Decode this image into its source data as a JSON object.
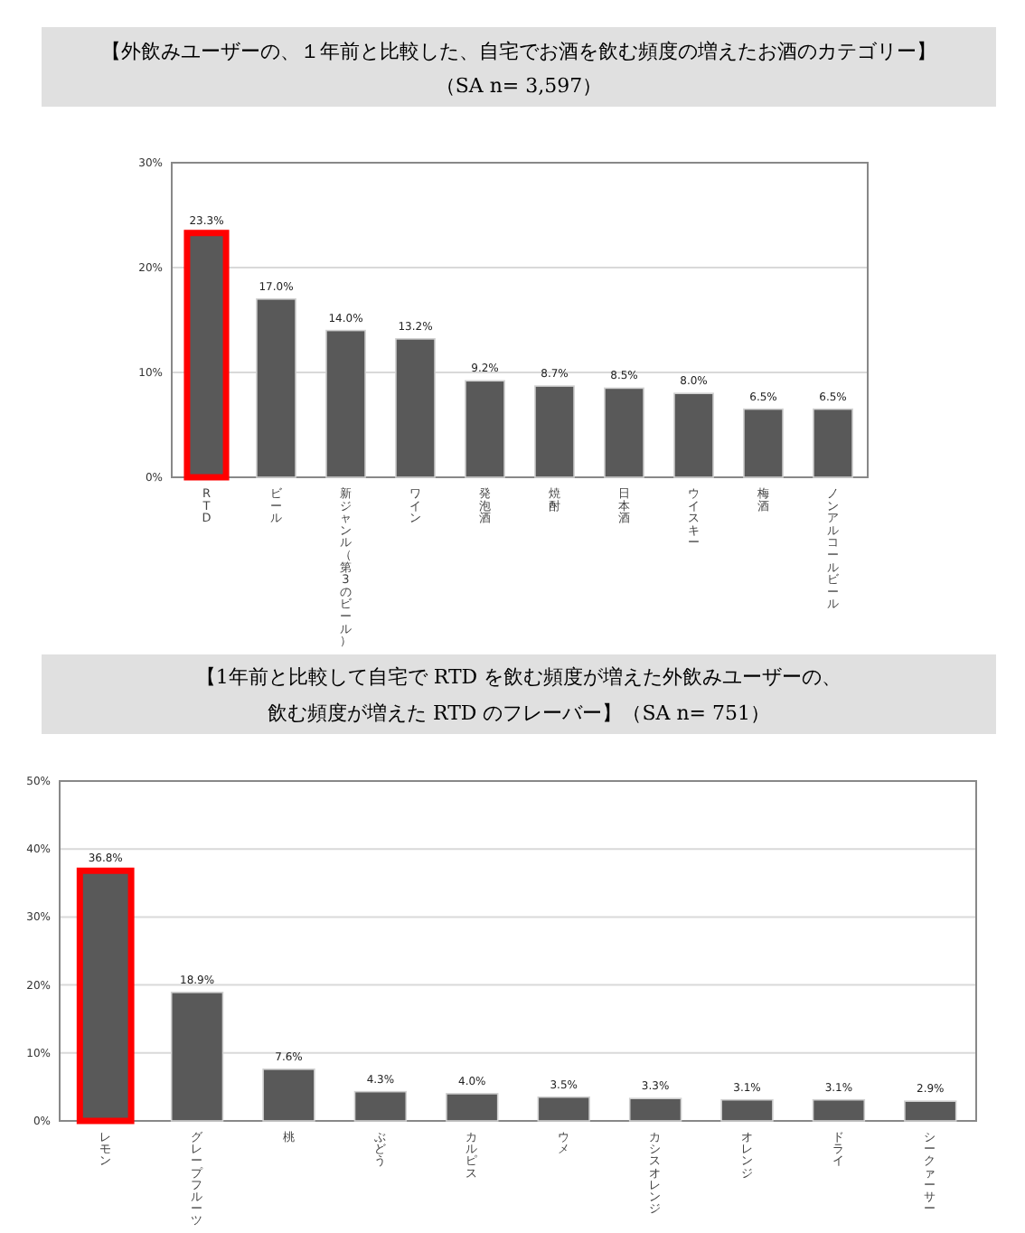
{
  "chart_data": [
    {
      "type": "bar",
      "title": "【外飲みユーザーの、１年前と比較した、自宅でお酒を飲む頻度の増えたお酒のカテゴリー】",
      "subtitle": "（SA n= 3,597）",
      "categories": [
        "RTD",
        "ビール",
        "新ジャンル（第3のビール）",
        "ワイン",
        "発泡酒",
        "焼酎",
        "日本酒",
        "ウイスキー",
        "梅酒",
        "ノンアルコールビール"
      ],
      "values": [
        23.3,
        17.0,
        14.0,
        13.2,
        9.2,
        8.7,
        8.5,
        8.0,
        6.5,
        6.5
      ],
      "value_labels": [
        "23.3%",
        "17.0%",
        "14.0%",
        "13.2%",
        "9.2%",
        "8.7%",
        "8.5%",
        "8.0%",
        "6.5%",
        "6.5%"
      ],
      "color": "#595959",
      "ylim": [
        0,
        30
      ],
      "yticks": [
        {
          "value": 0,
          "label": "0%"
        },
        {
          "value": 10,
          "label": "10%"
        },
        {
          "value": 20,
          "label": "20%"
        },
        {
          "value": 30,
          "label": "30%"
        }
      ],
      "grid": "y"
    },
    {
      "type": "bar",
      "title": "【1年前と比較して自宅で RTD を飲む頻度が増えた外飲みユーザーの、",
      "subtitle": "飲む頻度が増えた RTD のフレーバー】（SA n= 751）",
      "categories": [
        "レモン",
        "グレープフルーツ",
        "桃",
        "ぶどう",
        "カルピス",
        "ウメ",
        "カシスオレンジ",
        "オレンジ",
        "ドライ",
        "シークァーサー"
      ],
      "values": [
        36.8,
        18.9,
        7.6,
        4.3,
        4.0,
        3.5,
        3.3,
        3.1,
        3.1,
        2.9
      ],
      "value_labels": [
        "36.8%",
        "18.9%",
        "7.6%",
        "4.3%",
        "4.0%",
        "3.5%",
        "3.3%",
        "3.1%",
        "3.1%",
        "2.9%"
      ],
      "color": "#595959",
      "ylim": [
        0,
        50
      ],
      "yticks": [
        {
          "value": 0,
          "label": "0%"
        },
        {
          "value": 10,
          "label": "10%"
        },
        {
          "value": 20,
          "label": "20%"
        },
        {
          "value": 30,
          "label": "30%"
        },
        {
          "value": 40,
          "label": "40%"
        },
        {
          "value": 50,
          "label": "50%"
        }
      ],
      "grid": "y"
    }
  ]
}
